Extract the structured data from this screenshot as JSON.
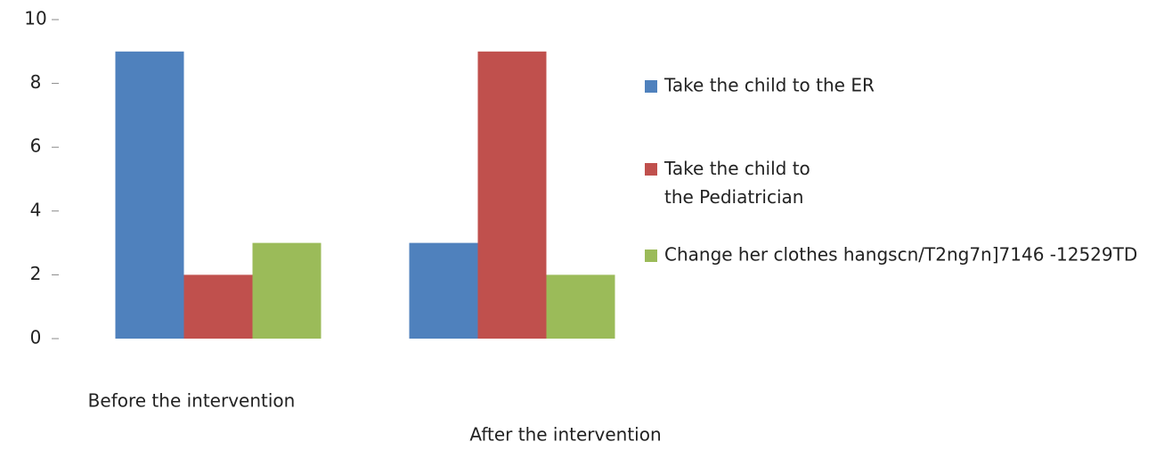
{
  "chart_data": {
    "type": "bar",
    "categories": [
      "Before the intervention",
      "After the intervention"
    ],
    "series": [
      {
        "name": "Take the child to the ER",
        "color": "#4f81bd",
        "values": [
          9,
          3
        ]
      },
      {
        "name": "Take the child to the Pediatrician",
        "color": "#c0504d",
        "values": [
          2,
          9
        ]
      },
      {
        "name": "Change her clothes hangscn/T2ng7n]7146 -12529TD",
        "color": "#9bbb59",
        "values": [
          3,
          2
        ]
      }
    ],
    "ylim": [
      0,
      10
    ],
    "yticks": [
      0,
      2,
      4,
      6,
      8,
      10
    ]
  }
}
